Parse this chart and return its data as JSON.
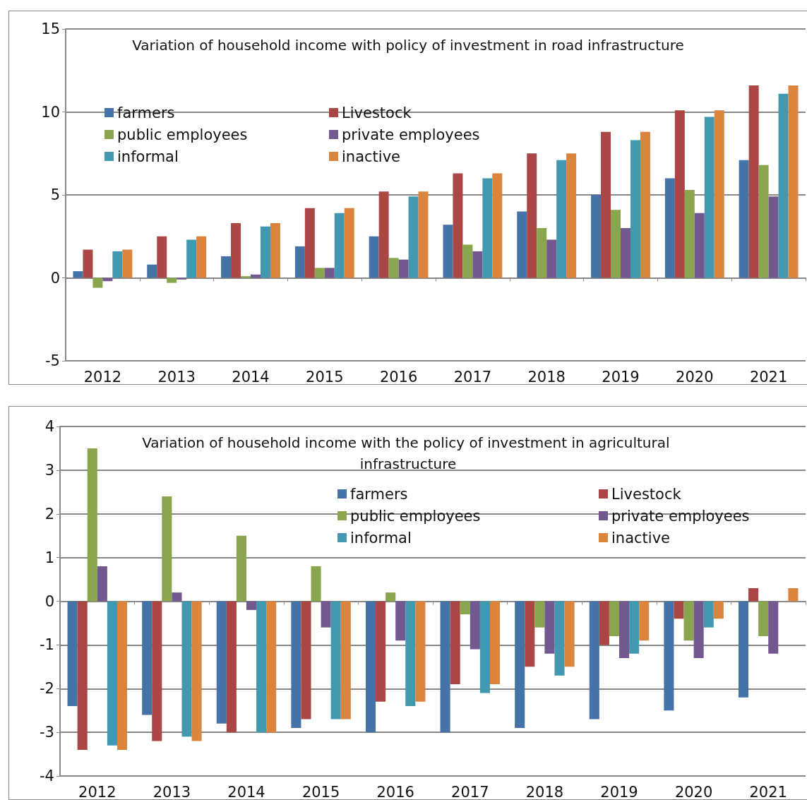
{
  "chart_data": [
    {
      "type": "bar",
      "title": "Variation of household income with policy of investment in road infrastructure",
      "categories": [
        "2012",
        "2013",
        "2014",
        "2015",
        "2016",
        "2017",
        "2018",
        "2019",
        "2020",
        "2021"
      ],
      "series": [
        {
          "name": "farmers",
          "color": "#4572a7",
          "values": [
            0.4,
            0.8,
            1.3,
            1.9,
            2.5,
            3.2,
            4.0,
            5.0,
            6.0,
            7.1
          ]
        },
        {
          "name": "Livestock",
          "color": "#aa4643",
          "values": [
            1.7,
            2.5,
            3.3,
            4.2,
            5.2,
            6.3,
            7.5,
            8.8,
            10.1,
            11.6
          ]
        },
        {
          "name": "public employees",
          "color": "#89a54e",
          "values": [
            -0.6,
            -0.3,
            0.1,
            0.6,
            1.2,
            2.0,
            3.0,
            4.1,
            5.3,
            6.8
          ]
        },
        {
          "name": "private employees",
          "color": "#71588f",
          "values": [
            -0.2,
            -0.1,
            0.2,
            0.6,
            1.1,
            1.6,
            2.3,
            3.0,
            3.9,
            4.9
          ]
        },
        {
          "name": "informal",
          "color": "#4198af",
          "values": [
            1.6,
            2.3,
            3.1,
            3.9,
            4.9,
            6.0,
            7.1,
            8.3,
            9.7,
            11.1
          ]
        },
        {
          "name": "inactive",
          "color": "#db843d",
          "values": [
            1.7,
            2.5,
            3.3,
            4.2,
            5.2,
            6.3,
            7.5,
            8.8,
            10.1,
            11.6
          ]
        }
      ],
      "ylim": [
        -5,
        15
      ],
      "yticks": [
        -5,
        0,
        5,
        10,
        15
      ],
      "grid": "y",
      "legend": "top left"
    },
    {
      "type": "bar",
      "title": "Variation of household income with the policy of investment in agricultural infrastructure",
      "categories": [
        "2012",
        "2013",
        "2014",
        "2015",
        "2016",
        "2017",
        "2018",
        "2019",
        "2020",
        "2021"
      ],
      "series": [
        {
          "name": "farmers",
          "color": "#4572a7",
          "values": [
            -2.4,
            -2.6,
            -2.8,
            -2.9,
            -3.0,
            -3.0,
            -2.9,
            -2.7,
            -2.5,
            -2.2
          ]
        },
        {
          "name": "Livestock",
          "color": "#aa4643",
          "values": [
            -3.4,
            -3.2,
            -3.0,
            -2.7,
            -2.3,
            -1.9,
            -1.5,
            -1.0,
            -0.4,
            0.3
          ]
        },
        {
          "name": "public employees",
          "color": "#89a54e",
          "values": [
            3.5,
            2.4,
            1.5,
            0.8,
            0.2,
            -0.3,
            -0.6,
            -0.8,
            -0.9,
            -0.8
          ]
        },
        {
          "name": "private employees",
          "color": "#71588f",
          "values": [
            0.8,
            0.2,
            -0.2,
            -0.6,
            -0.9,
            -1.1,
            -1.2,
            -1.3,
            -1.3,
            -1.2
          ]
        },
        {
          "name": "informal",
          "color": "#4198af",
          "values": [
            -3.3,
            -3.1,
            -3.0,
            -2.7,
            -2.4,
            -2.1,
            -1.7,
            -1.2,
            -0.6,
            0
          ]
        },
        {
          "name": "inactive",
          "color": "#db843d",
          "values": [
            -3.4,
            -3.2,
            -3.0,
            -2.7,
            -2.3,
            -1.9,
            -1.5,
            -0.9,
            -0.4,
            0.3
          ]
        }
      ],
      "ylim": [
        -4,
        4
      ],
      "yticks": [
        -4,
        -3,
        -2,
        -1,
        0,
        1,
        2,
        3,
        4
      ],
      "grid": "y",
      "legend": "top right"
    }
  ]
}
